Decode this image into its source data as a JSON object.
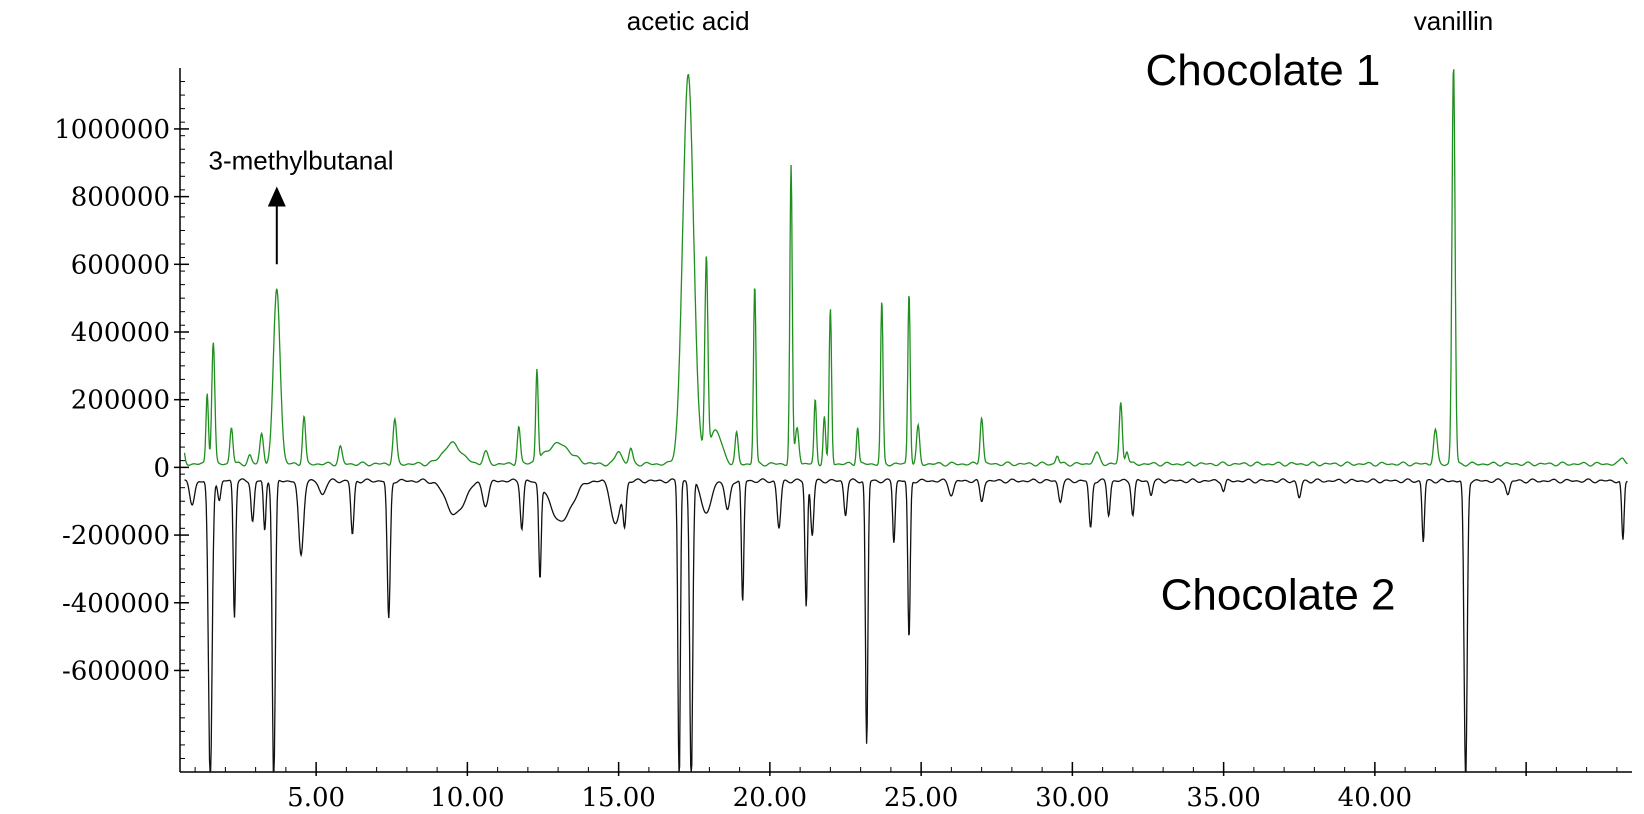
{
  "chart_data": {
    "type": "line",
    "title": "",
    "xlabel": "",
    "ylabel": "",
    "xlim": [
      0.5,
      48.5
    ],
    "ylim": [
      -900000,
      1180000
    ],
    "xticks": [
      5,
      10,
      15,
      20,
      25,
      30,
      35,
      40
    ],
    "xtick_labels": [
      "5.00",
      "10.00",
      "15.00",
      "20.00",
      "25.00",
      "30.00",
      "35.00",
      "40.00"
    ],
    "yticks": [
      1000000,
      800000,
      600000,
      400000,
      200000,
      0,
      -200000,
      -400000,
      -600000
    ],
    "ytick_labels": [
      "1000000",
      "800000",
      "600000",
      "400000",
      "200000",
      "0",
      "-200000",
      "-400000",
      "-600000"
    ],
    "grid": false,
    "baseline_offset": -40000,
    "series": [
      {
        "name": "Chocolate 1",
        "color": "#1f8f1f",
        "baseline": 10000,
        "peaks": [
          [
            0.6,
            50000,
            0.05
          ],
          [
            1.4,
            210000,
            0.04
          ],
          [
            1.6,
            360000,
            0.05
          ],
          [
            2.2,
            110000,
            0.05
          ],
          [
            2.8,
            25000,
            0.06
          ],
          [
            3.2,
            90000,
            0.06
          ],
          [
            3.7,
            520000,
            0.11
          ],
          [
            4.6,
            140000,
            0.05
          ],
          [
            5.8,
            50000,
            0.06
          ],
          [
            7.6,
            130000,
            0.06
          ],
          [
            9.5,
            60000,
            0.3
          ],
          [
            10.6,
            35000,
            0.08
          ],
          [
            11.7,
            110000,
            0.05
          ],
          [
            12.3,
            270000,
            0.04
          ],
          [
            13.0,
            60000,
            0.4
          ],
          [
            15.0,
            40000,
            0.1
          ],
          [
            15.4,
            45000,
            0.06
          ],
          [
            17.3,
            1150000,
            0.18
          ],
          [
            17.9,
            580000,
            0.05
          ],
          [
            18.2,
            100000,
            0.2
          ],
          [
            18.9,
            90000,
            0.05
          ],
          [
            19.5,
            530000,
            0.04
          ],
          [
            20.7,
            880000,
            0.04
          ],
          [
            20.9,
            110000,
            0.06
          ],
          [
            21.5,
            190000,
            0.04
          ],
          [
            21.8,
            140000,
            0.04
          ],
          [
            22.0,
            460000,
            0.04
          ],
          [
            22.9,
            110000,
            0.04
          ],
          [
            23.7,
            480000,
            0.04
          ],
          [
            24.6,
            510000,
            0.04
          ],
          [
            24.9,
            110000,
            0.05
          ],
          [
            27.0,
            140000,
            0.05
          ],
          [
            29.5,
            25000,
            0.05
          ],
          [
            30.8,
            30000,
            0.1
          ],
          [
            31.6,
            180000,
            0.05
          ],
          [
            31.8,
            40000,
            0.05
          ],
          [
            42.0,
            100000,
            0.06
          ],
          [
            42.6,
            1180000,
            0.05
          ],
          [
            48.2,
            20000,
            0.08
          ]
        ]
      },
      {
        "name": "Chocolate 2",
        "color": "#111111",
        "baseline": -40000,
        "peaks": [
          [
            0.9,
            70000,
            0.08
          ],
          [
            1.5,
            900000,
            0.06
          ],
          [
            1.8,
            60000,
            0.05
          ],
          [
            2.3,
            400000,
            0.04
          ],
          [
            2.9,
            120000,
            0.05
          ],
          [
            3.3,
            150000,
            0.04
          ],
          [
            3.6,
            900000,
            0.05
          ],
          [
            4.5,
            220000,
            0.08
          ],
          [
            5.2,
            40000,
            0.1
          ],
          [
            6.2,
            160000,
            0.05
          ],
          [
            7.4,
            410000,
            0.05
          ],
          [
            9.6,
            100000,
            0.3
          ],
          [
            10.6,
            70000,
            0.1
          ],
          [
            11.8,
            140000,
            0.05
          ],
          [
            12.4,
            270000,
            0.04
          ],
          [
            13.1,
            120000,
            0.35
          ],
          [
            14.9,
            130000,
            0.15
          ],
          [
            15.2,
            120000,
            0.05
          ],
          [
            17.0,
            900000,
            0.04
          ],
          [
            17.4,
            900000,
            0.05
          ],
          [
            17.9,
            100000,
            0.15
          ],
          [
            18.6,
            90000,
            0.08
          ],
          [
            19.1,
            360000,
            0.04
          ],
          [
            20.3,
            140000,
            0.06
          ],
          [
            21.2,
            370000,
            0.04
          ],
          [
            21.4,
            160000,
            0.05
          ],
          [
            22.5,
            100000,
            0.05
          ],
          [
            23.2,
            780000,
            0.04
          ],
          [
            24.1,
            180000,
            0.04
          ],
          [
            24.6,
            470000,
            0.04
          ],
          [
            26.0,
            40000,
            0.08
          ],
          [
            27.0,
            60000,
            0.06
          ],
          [
            29.6,
            60000,
            0.06
          ],
          [
            30.6,
            140000,
            0.05
          ],
          [
            31.2,
            100000,
            0.05
          ],
          [
            32.0,
            100000,
            0.05
          ],
          [
            32.6,
            40000,
            0.05
          ],
          [
            35.0,
            30000,
            0.05
          ],
          [
            37.5,
            50000,
            0.06
          ],
          [
            41.6,
            180000,
            0.04
          ],
          [
            43.0,
            900000,
            0.05
          ],
          [
            44.4,
            40000,
            0.06
          ],
          [
            48.2,
            180000,
            0.04
          ]
        ]
      }
    ],
    "annotations": [
      {
        "text": "acetic acid",
        "x": 17.3,
        "y": 1320000
      },
      {
        "text": "vanillin",
        "x": 42.6,
        "y": 1320000
      },
      {
        "text": "3-methylbutanal",
        "x": 4.5,
        "y": 880000
      }
    ],
    "arrow": {
      "x": 3.7,
      "y_from": 600000,
      "y_to": 830000
    },
    "series_labels": [
      {
        "text": "Chocolate 1",
        "x": 36.3,
        "y": 1130000
      },
      {
        "text": "Chocolate 2",
        "x": 36.8,
        "y": -420000
      }
    ]
  }
}
